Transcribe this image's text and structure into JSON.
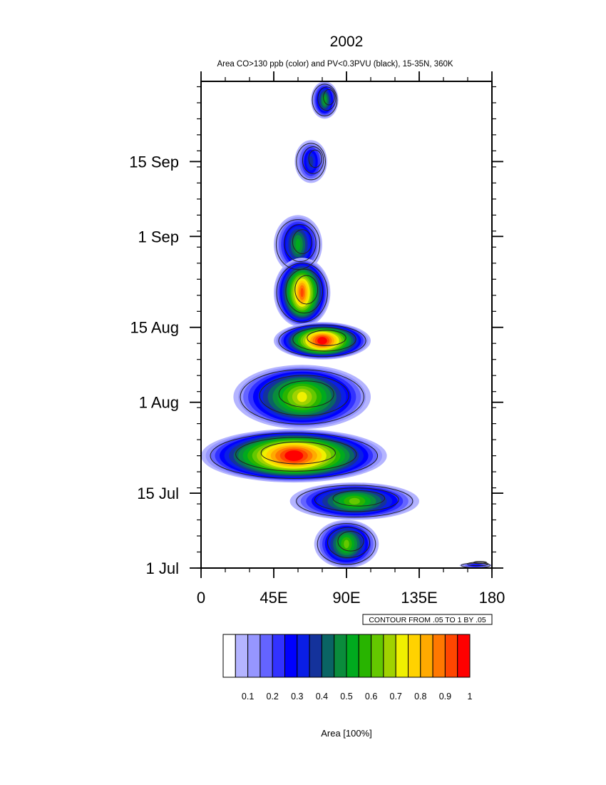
{
  "chart_data": {
    "type": "heatmap",
    "title": "2002",
    "subtitle": "Area CO>130 ppb (color) and PV<0.3PVU (black), 15-35N, 360K",
    "x_axis": {
      "range": [
        0,
        180
      ],
      "ticks": [
        {
          "value": 0,
          "label": "0"
        },
        {
          "value": 45,
          "label": "45E"
        },
        {
          "value": 90,
          "label": "90E"
        },
        {
          "value": 135,
          "label": "135E"
        },
        {
          "value": 180,
          "label": "180"
        }
      ]
    },
    "y_axis": {
      "range": [
        "2002-07-01",
        "2002-09-30"
      ],
      "ticks": [
        {
          "date": "2002-07-01",
          "label": "1 Jul"
        },
        {
          "date": "2002-07-15",
          "label": "15 Jul"
        },
        {
          "date": "2002-08-01",
          "label": "1 Aug"
        },
        {
          "date": "2002-08-15",
          "label": "15 Aug"
        },
        {
          "date": "2002-09-01",
          "label": "1 Sep"
        },
        {
          "date": "2002-09-15",
          "label": "15 Sep"
        }
      ]
    },
    "contour_note": "CONTOUR FROM .05 TO 1 BY .05",
    "colorbar": {
      "label": "Area [100%]",
      "ticks": [
        "0.1",
        "0.2",
        "0.3",
        "0.4",
        "0.5",
        "0.6",
        "0.7",
        "0.8",
        "0.9",
        "1"
      ],
      "colors": [
        "#ffffff",
        "#b4b4ff",
        "#9696ff",
        "#6464ff",
        "#3232ff",
        "#0000ff",
        "#0a1ee6",
        "#14329b",
        "#0a6464",
        "#0a8c3c",
        "#00aa1e",
        "#28b400",
        "#64c800",
        "#a0d200",
        "#f0f000",
        "#ffd200",
        "#ffaa00",
        "#ff7800",
        "#ff4600",
        "#ff0000"
      ]
    },
    "co_area_regions": [
      {
        "lon_range": [
          68,
          85
        ],
        "date_range": [
          "2002-09-23",
          "2002-09-30"
        ],
        "peak": 0.5
      },
      {
        "lon_range": [
          58,
          78
        ],
        "date_range": [
          "2002-09-11",
          "2002-09-19"
        ],
        "peak": 0.35
      },
      {
        "lon_range": [
          45,
          75
        ],
        "date_range": [
          "2002-08-25",
          "2002-09-05"
        ],
        "peak": 0.5
      },
      {
        "lon_range": [
          45,
          80
        ],
        "date_range": [
          "2002-08-15",
          "2002-08-28"
        ],
        "peak": 0.9
      },
      {
        "lon_range": [
          45,
          105
        ],
        "date_range": [
          "2002-08-09",
          "2002-08-16"
        ],
        "peak": 1.0
      },
      {
        "lon_range": [
          20,
          105
        ],
        "date_range": [
          "2002-07-27",
          "2002-08-08"
        ],
        "peak": 0.7
      },
      {
        "lon_range": [
          0,
          115
        ],
        "date_range": [
          "2002-07-17",
          "2002-07-27"
        ],
        "peak": 1.0
      },
      {
        "lon_range": [
          55,
          135
        ],
        "date_range": [
          "2002-07-10",
          "2002-07-17"
        ],
        "peak": 0.6
      },
      {
        "lon_range": [
          70,
          110
        ],
        "date_range": [
          "2002-07-01",
          "2002-07-10"
        ],
        "peak": 0.6
      },
      {
        "lon_range": [
          160,
          180
        ],
        "date_range": [
          "2002-07-01",
          "2002-07-02"
        ],
        "peak": 0.3
      }
    ]
  }
}
